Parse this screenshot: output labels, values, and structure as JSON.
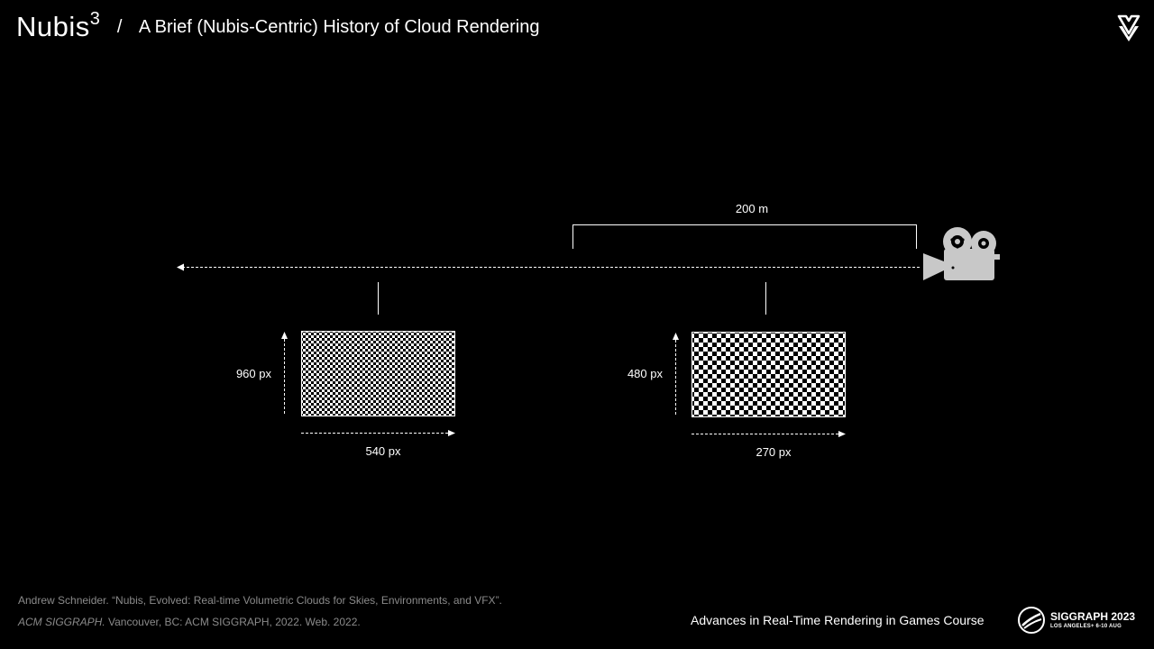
{
  "header": {
    "brand": "Nubis",
    "brand_sup": "3",
    "separator": "/",
    "subtitle": "A Brief (Nubis-Centric) History of Cloud Rendering"
  },
  "diagram": {
    "distance_label": "200 m",
    "near_buffer": {
      "height_label": "960 px",
      "width_label": "540 px"
    },
    "far_buffer": {
      "height_label": "480 px",
      "width_label": "270 px"
    },
    "camera_icon": "movie-camera-icon"
  },
  "footer": {
    "citation_line1": "Andrew Schneider. “Nubis, Evolved: Real-time Volumetric Clouds for Skies, Environments, and VFX”.",
    "citation_venue": "ACM SIGGRAPH.",
    "citation_rest": " Vancouver, BC: ACM SIGGRAPH, 2022.  Web. 2022.",
    "course": "Advances in Real-Time Rendering in Games Course",
    "siggraph_name": "SIGGRAPH 2023",
    "siggraph_sub": "LOS ANGELES+  6-10 AUG"
  },
  "colors": {
    "background": "#000000",
    "foreground": "#ffffff",
    "muted": "#8a8a8a",
    "icon": "#c8c8c8"
  }
}
